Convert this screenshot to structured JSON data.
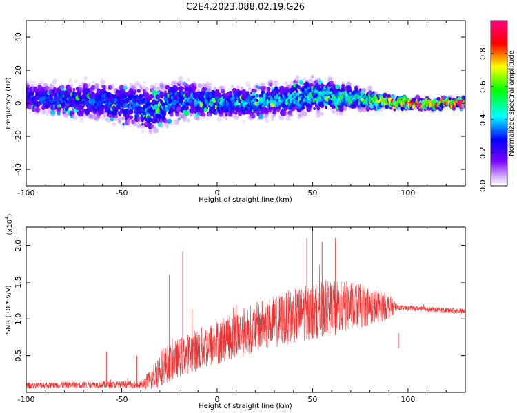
{
  "title": "C2E4.2023.088.02.19.G26",
  "chart_data": [
    {
      "type": "heatmap",
      "xlabel": "Height of straight line (km)",
      "ylabel": "Frequency (Hz)",
      "xlim": [
        -100,
        130
      ],
      "ylim": [
        -50,
        50
      ],
      "x_ticks": [
        -100,
        -50,
        0,
        50,
        100
      ],
      "x_tick_labels": [
        "-100",
        "-50",
        "0",
        "50",
        "100"
      ],
      "y_ticks": [
        -40,
        -20,
        0,
        20,
        40
      ],
      "y_tick_labels": [
        "-40",
        "-20",
        "0",
        "20",
        "40"
      ],
      "colorbar": {
        "label": "Normalized spectral amplitude",
        "range": [
          0,
          1
        ],
        "ticks": [
          0.0,
          0.2,
          0.4,
          0.6,
          0.8
        ],
        "tick_labels": [
          "0.0",
          "0.2",
          "0.4",
          "0.6",
          "0.8"
        ],
        "colormap": [
          "#ffffff",
          "#7b00ff",
          "#0000ff",
          "#00ffff",
          "#00ff00",
          "#ffff00",
          "#ff0000",
          "#ff0080"
        ]
      },
      "band_center_hz": [
        {
          "x": -100,
          "y": 3
        },
        {
          "x": -75,
          "y": 2
        },
        {
          "x": -50,
          "y": 0
        },
        {
          "x": -35,
          "y": -4
        },
        {
          "x": -20,
          "y": 2
        },
        {
          "x": 0,
          "y": 0
        },
        {
          "x": 20,
          "y": 1
        },
        {
          "x": 40,
          "y": 3
        },
        {
          "x": 55,
          "y": 5
        },
        {
          "x": 75,
          "y": 3
        },
        {
          "x": 90,
          "y": 1
        },
        {
          "x": 100,
          "y": 0
        },
        {
          "x": 130,
          "y": 0
        }
      ],
      "band_half_width_hz": [
        {
          "x": -100,
          "y": 10
        },
        {
          "x": -50,
          "y": 14
        },
        {
          "x": -30,
          "y": 16
        },
        {
          "x": -20,
          "y": 14
        },
        {
          "x": 0,
          "y": 10
        },
        {
          "x": 50,
          "y": 12
        },
        {
          "x": 75,
          "y": 7
        },
        {
          "x": 90,
          "y": 4
        },
        {
          "x": 100,
          "y": 3
        },
        {
          "x": 130,
          "y": 3
        }
      ],
      "peak_amplitude": [
        {
          "x": -100,
          "y": 0.3
        },
        {
          "x": 0,
          "y": 0.4
        },
        {
          "x": 50,
          "y": 0.45
        },
        {
          "x": 80,
          "y": 0.6
        },
        {
          "x": 90,
          "y": 0.9
        },
        {
          "x": 100,
          "y": 0.98
        },
        {
          "x": 130,
          "y": 0.98
        }
      ]
    },
    {
      "type": "line",
      "xlabel": "Height of straight line (km)",
      "ylabel": "SNR (10 * v/v)",
      "y_exponent_label": "(x10",
      "y_exponent": "4",
      "y_exponent_close": ")",
      "xlim": [
        -100,
        130
      ],
      "ylim": [
        0,
        2.25
      ],
      "x_ticks": [
        -100,
        -50,
        0,
        50,
        100
      ],
      "x_tick_labels": [
        "-100",
        "-50",
        "0",
        "50",
        "100"
      ],
      "y_ticks": [
        0.5,
        1.0,
        1.5,
        2.0
      ],
      "y_tick_labels": [
        "0.5",
        "1.0",
        "1.5",
        "2.0"
      ],
      "series": [
        {
          "color": "#ee3333",
          "baseline": [
            {
              "x": -100,
              "y": 0.09
            },
            {
              "x": -60,
              "y": 0.1
            },
            {
              "x": -40,
              "y": 0.1
            },
            {
              "x": -35,
              "y": 0.15
            },
            {
              "x": -30,
              "y": 0.3
            },
            {
              "x": -20,
              "y": 0.45
            },
            {
              "x": 0,
              "y": 0.65
            },
            {
              "x": 20,
              "y": 0.85
            },
            {
              "x": 40,
              "y": 1.0
            },
            {
              "x": 60,
              "y": 1.12
            },
            {
              "x": 80,
              "y": 1.15
            },
            {
              "x": 95,
              "y": 1.15
            },
            {
              "x": 130,
              "y": 1.1
            }
          ],
          "noise": [
            {
              "x": -100,
              "y": 0.06
            },
            {
              "x": -40,
              "y": 0.07
            },
            {
              "x": -30,
              "y": 0.35
            },
            {
              "x": 0,
              "y": 0.45
            },
            {
              "x": 50,
              "y": 0.55
            },
            {
              "x": 70,
              "y": 0.5
            },
            {
              "x": 90,
              "y": 0.25
            },
            {
              "x": 95,
              "y": 0.05
            },
            {
              "x": 130,
              "y": 0.05
            }
          ],
          "spikes": [
            {
              "x": -18,
              "y": 1.92
            },
            {
              "x": -25,
              "y": 1.6
            },
            {
              "x": -42,
              "y": 0.5
            },
            {
              "x": -58,
              "y": 0.55
            },
            {
              "x": 50,
              "y": 2.25
            },
            {
              "x": 47,
              "y": 2.1
            },
            {
              "x": 62,
              "y": 2.1
            },
            {
              "x": 55,
              "y": 2.05
            },
            {
              "x": 95,
              "y": 0.6
            }
          ]
        }
      ]
    }
  ]
}
